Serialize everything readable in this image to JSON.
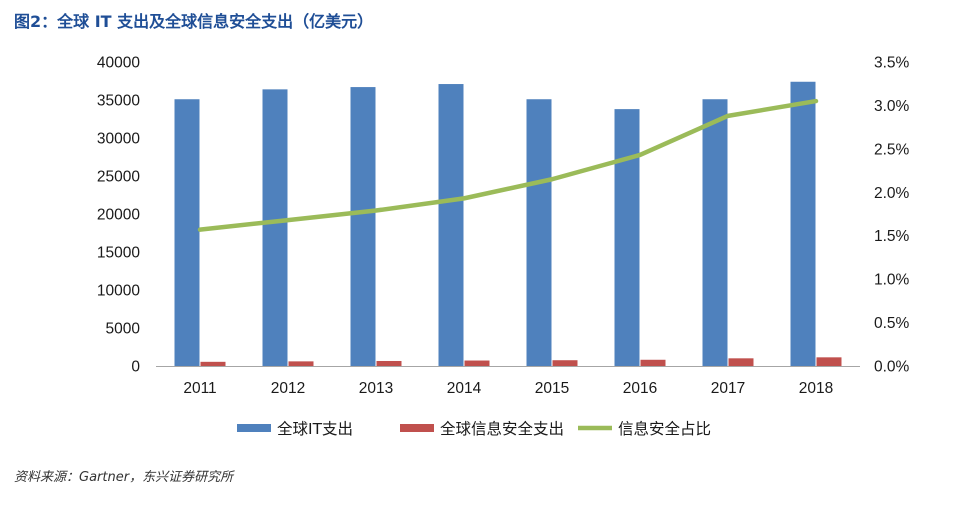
{
  "title": "图2：全球 IT 支出及全球信息安全支出（亿美元）",
  "source": "资料来源：Gartner，东兴证券研究所",
  "colors": {
    "it": "#4f81bd",
    "sec": "#c0504d",
    "ratio": "#9bbb59",
    "title": "#1f4e96"
  },
  "chart_data": {
    "type": "bar",
    "categories": [
      "2011",
      "2012",
      "2013",
      "2014",
      "2015",
      "2016",
      "2017",
      "2018"
    ],
    "series": [
      {
        "name": "全球IT支出",
        "type": "bar",
        "axis": "left",
        "color": "#4f81bd",
        "values": [
          35100,
          36400,
          36700,
          37100,
          35100,
          33800,
          35100,
          37400
        ]
      },
      {
        "name": "全球信息安全支出",
        "type": "bar",
        "axis": "left",
        "color": "#c0504d",
        "values": [
          550,
          610,
          660,
          720,
          760,
          820,
          1010,
          1140
        ]
      },
      {
        "name": "信息安全占比",
        "type": "line",
        "axis": "right",
        "color": "#9bbb59",
        "values": [
          0.0157,
          0.0168,
          0.0179,
          0.0193,
          0.0215,
          0.0243,
          0.0288,
          0.0305
        ]
      }
    ],
    "y_left": {
      "min": 0,
      "max": 40000,
      "step": 5000,
      "ticks": [
        "0",
        "5000",
        "10000",
        "15000",
        "20000",
        "25000",
        "30000",
        "35000",
        "40000"
      ]
    },
    "y_right": {
      "min": 0,
      "max": 0.035,
      "step": 0.005,
      "ticks": [
        "0.0%",
        "0.5%",
        "1.0%",
        "1.5%",
        "2.0%",
        "2.5%",
        "3.0%",
        "3.5%"
      ]
    },
    "grid": false,
    "legend": "bottom"
  }
}
